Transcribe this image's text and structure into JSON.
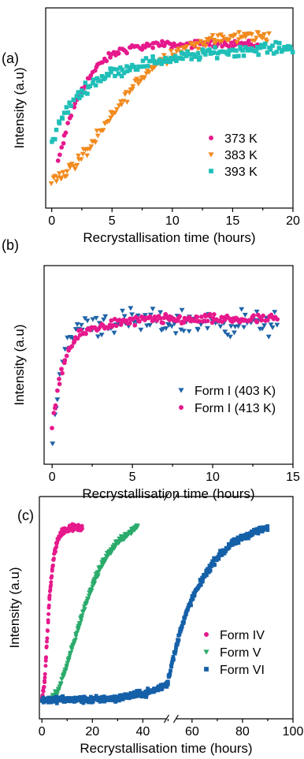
{
  "chart_data": [
    {
      "panel": "(a)",
      "type": "scatter",
      "xlabel": "Recrystallisation time (hours)",
      "ylabel": "Intensity (a.u)",
      "xlim": [
        -0.5,
        20
      ],
      "xticks": [
        "0",
        "5",
        "10",
        "15",
        "20"
      ],
      "legend_position": "bottom-right",
      "colors": {
        "373 K": "#e6198c",
        "383 K": "#f28a1e",
        "393 K": "#1fbfb8"
      },
      "series": [
        {
          "name": "373 K",
          "marker": "circle",
          "x": [
            0.5,
            1.5,
            2.5,
            3.5,
            4.5,
            5.5,
            6.5,
            7.5,
            9,
            11,
            13,
            15,
            17
          ],
          "y": [
            0.2,
            0.46,
            0.63,
            0.73,
            0.8,
            0.84,
            0.86,
            0.87,
            0.88,
            0.88,
            0.89,
            0.89,
            0.88
          ]
        },
        {
          "name": "383 K",
          "marker": "triangle-down",
          "x": [
            0,
            1,
            2,
            3,
            4,
            5,
            6,
            7,
            8,
            9,
            10,
            11,
            12,
            13,
            14,
            15,
            16,
            17,
            18
          ],
          "y": [
            0.1,
            0.14,
            0.2,
            0.28,
            0.37,
            0.47,
            0.57,
            0.66,
            0.73,
            0.79,
            0.83,
            0.86,
            0.88,
            0.9,
            0.91,
            0.92,
            0.93,
            0.93,
            0.93
          ]
        },
        {
          "name": "393 K",
          "marker": "square",
          "x": [
            0,
            1,
            2,
            3,
            4,
            5,
            6,
            7,
            8,
            9,
            10,
            11,
            12,
            14,
            16,
            18,
            20
          ],
          "y": [
            0.32,
            0.48,
            0.58,
            0.64,
            0.69,
            0.72,
            0.74,
            0.76,
            0.78,
            0.79,
            0.8,
            0.81,
            0.82,
            0.84,
            0.85,
            0.86,
            0.86
          ]
        }
      ]
    },
    {
      "panel": "(b)",
      "type": "scatter",
      "xlabel": "Recrystallisation time (hours)",
      "ylabel": "Intensity (a.u)",
      "xlim": [
        -0.5,
        15
      ],
      "xticks": [
        "0",
        "5",
        "10",
        "15"
      ],
      "legend_position": "bottom-right",
      "colors": {
        "Form I (403 K)": "#1f63a8",
        "Form I (413 K)": "#e6198c"
      },
      "series": [
        {
          "name": "Form I (403 K)",
          "marker": "triangle-down",
          "x": [
            0,
            0.5,
            1,
            1.5,
            2,
            3,
            4,
            5,
            6,
            7,
            8,
            9,
            10,
            11,
            12,
            13,
            14
          ],
          "y": [
            0.12,
            0.45,
            0.65,
            0.73,
            0.76,
            0.76,
            0.76,
            0.76,
            0.76,
            0.76,
            0.76,
            0.76,
            0.76,
            0.76,
            0.76,
            0.76,
            0.76
          ]
        },
        {
          "name": "Form I (413 K)",
          "marker": "circle",
          "x": [
            0,
            0.5,
            1,
            1.5,
            2,
            3,
            4,
            5,
            6,
            7,
            8,
            9,
            10,
            11,
            12,
            13,
            14
          ],
          "y": [
            0.15,
            0.45,
            0.6,
            0.67,
            0.71,
            0.74,
            0.76,
            0.77,
            0.78,
            0.78,
            0.78,
            0.78,
            0.78,
            0.78,
            0.78,
            0.78,
            0.78
          ]
        }
      ]
    },
    {
      "panel": "(c)",
      "type": "scatter",
      "xlabel": "Recrystallisation time (hours)",
      "ylabel": "Intensity (a.u)",
      "xlim": [
        -1,
        100
      ],
      "x_axis_break": [
        50,
        53
      ],
      "xticks": [
        "0",
        "20",
        "40",
        "60",
        "80",
        "100"
      ],
      "legend_position": "bottom-right",
      "colors": {
        "Form IV": "#e6198c",
        "Form V": "#2bab6b",
        "Form VI": "#1560a8"
      },
      "series": [
        {
          "name": "Form IV",
          "marker": "circle",
          "x": [
            0,
            1,
            2,
            3,
            4,
            5,
            6,
            7,
            8,
            10,
            12,
            14,
            16
          ],
          "y": [
            0.04,
            0.12,
            0.34,
            0.55,
            0.69,
            0.78,
            0.84,
            0.87,
            0.89,
            0.9,
            0.91,
            0.91,
            0.91
          ]
        },
        {
          "name": "Form V",
          "marker": "triangle-down",
          "x": [
            3,
            6,
            9,
            12,
            15,
            18,
            21,
            24,
            27,
            30,
            33,
            36,
            38
          ],
          "y": [
            0.04,
            0.07,
            0.18,
            0.3,
            0.43,
            0.55,
            0.65,
            0.73,
            0.79,
            0.84,
            0.87,
            0.9,
            0.92
          ]
        },
        {
          "name": "Form VI",
          "marker": "square",
          "x": [
            0,
            10,
            20,
            30,
            40,
            45,
            50,
            53,
            56,
            60,
            65,
            70,
            75,
            80,
            85,
            90
          ],
          "y": [
            0.04,
            0.04,
            0.04,
            0.05,
            0.07,
            0.09,
            0.12,
            0.27,
            0.42,
            0.55,
            0.67,
            0.76,
            0.82,
            0.86,
            0.89,
            0.91
          ]
        }
      ]
    }
  ]
}
